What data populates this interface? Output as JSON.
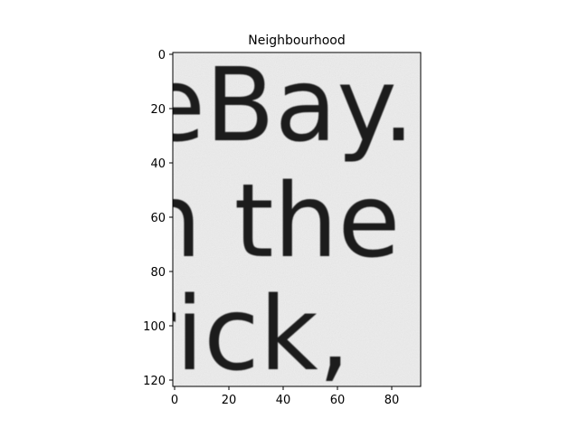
{
  "figure": {
    "title": "Neighbourhood",
    "image_text": [
      "eBay.",
      "n the",
      "rick,"
    ],
    "image_colors": {
      "paper": "#ececec",
      "ink": "#1e1e1e"
    },
    "x_axis": {
      "range": [
        0,
        90
      ],
      "tick_labels": [
        "0",
        "20",
        "40",
        "60",
        "80"
      ]
    },
    "y_axis": {
      "range": [
        0,
        122
      ],
      "inverted": true,
      "tick_labels": [
        "0",
        "20",
        "40",
        "60",
        "80",
        "100",
        "120"
      ]
    }
  }
}
